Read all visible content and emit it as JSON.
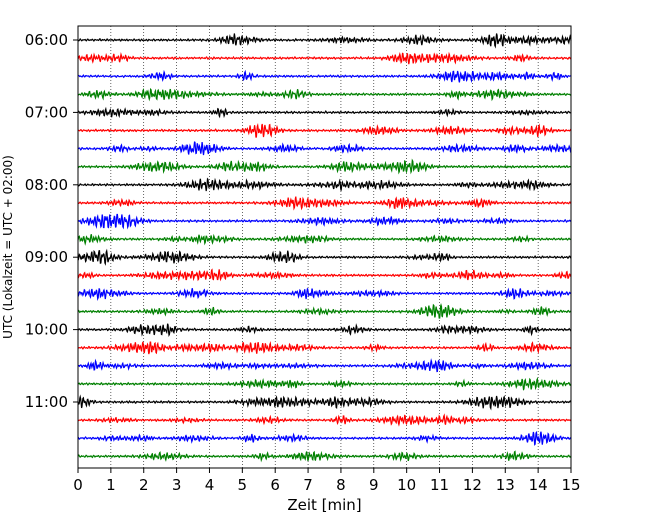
{
  "chart_data": {
    "type": "line",
    "title": "",
    "xlabel": "Zeit  [min]",
    "ylabel": "UTC (Lokalzeit = UTC + 02:00)",
    "xlim": [
      0,
      15
    ],
    "x_ticks": [
      "0",
      "1",
      "2",
      "3",
      "4",
      "5",
      "6",
      "7",
      "8",
      "9",
      "10",
      "11",
      "12",
      "13",
      "14",
      "15"
    ],
    "y_tick_labels": [
      "06:00",
      "07:00",
      "08:00",
      "09:00",
      "10:00",
      "11:00"
    ],
    "grid": "vertical dotted lines at each minute",
    "trace_start": "06:00",
    "trace_interval_minutes": 15,
    "trace_count": 24,
    "trace_colors": [
      "#000000",
      "#ff0000",
      "#0000ff",
      "#008000"
    ]
  }
}
